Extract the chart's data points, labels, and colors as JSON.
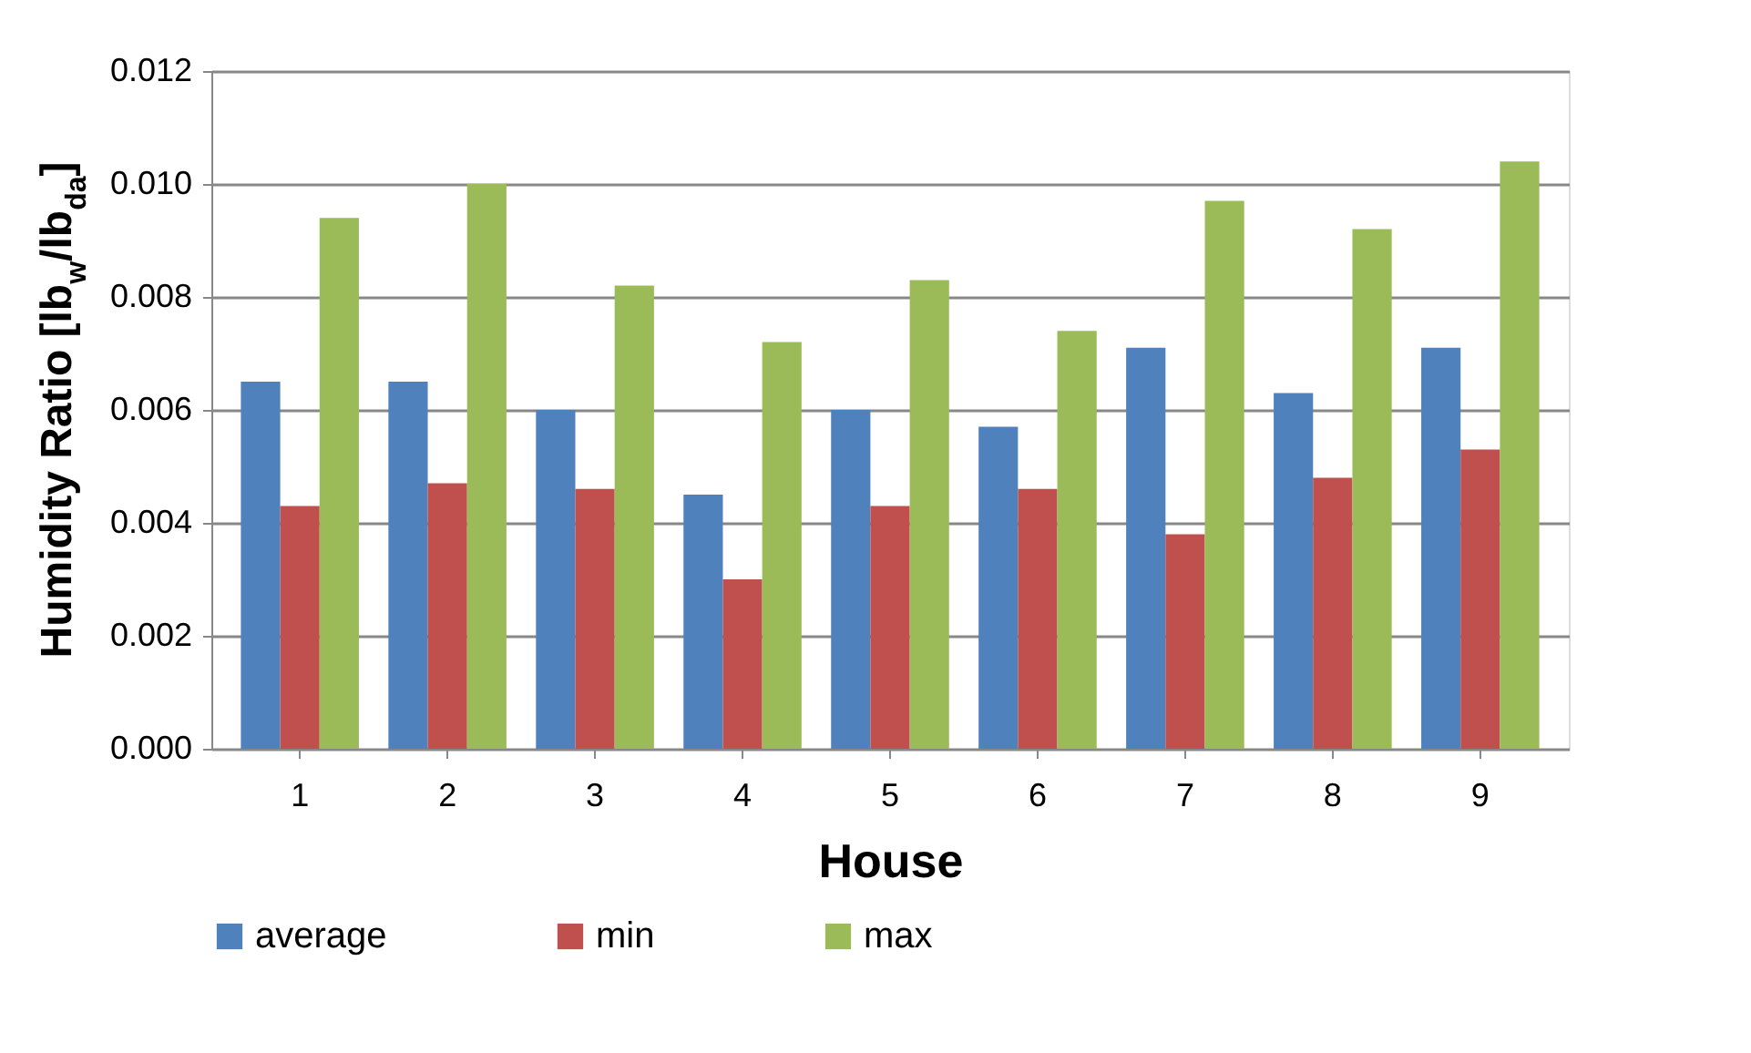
{
  "chart_data": {
    "type": "bar",
    "xlabel": "House",
    "ylabel": "Humidity Ratio [lb$_{w}$/lb$_{da}$]",
    "categories": [
      "1",
      "2",
      "3",
      "4",
      "5",
      "6",
      "7",
      "8",
      "9"
    ],
    "series": [
      {
        "name": "average",
        "color": "#4f81bd",
        "values": [
          0.0065,
          0.0065,
          0.006,
          0.0045,
          0.006,
          0.0057,
          0.0071,
          0.0063,
          0.0071
        ]
      },
      {
        "name": "min",
        "color": "#c0504d",
        "values": [
          0.0043,
          0.0047,
          0.0046,
          0.003,
          0.0043,
          0.0046,
          0.0038,
          0.0048,
          0.0053
        ]
      },
      {
        "name": "max",
        "color": "#9bbb59",
        "values": [
          0.0094,
          0.01,
          0.0082,
          0.0072,
          0.0083,
          0.0074,
          0.0097,
          0.0092,
          0.0104
        ]
      }
    ],
    "ylim": [
      0,
      0.012
    ],
    "yticks": [
      {
        "value": 0,
        "label": "0.000"
      },
      0.002,
      0.004,
      0.006,
      0.008,
      {
        "value": 0.01,
        "label": "0.010"
      },
      0.012
    ],
    "grid": "y",
    "legend": "bottom"
  }
}
